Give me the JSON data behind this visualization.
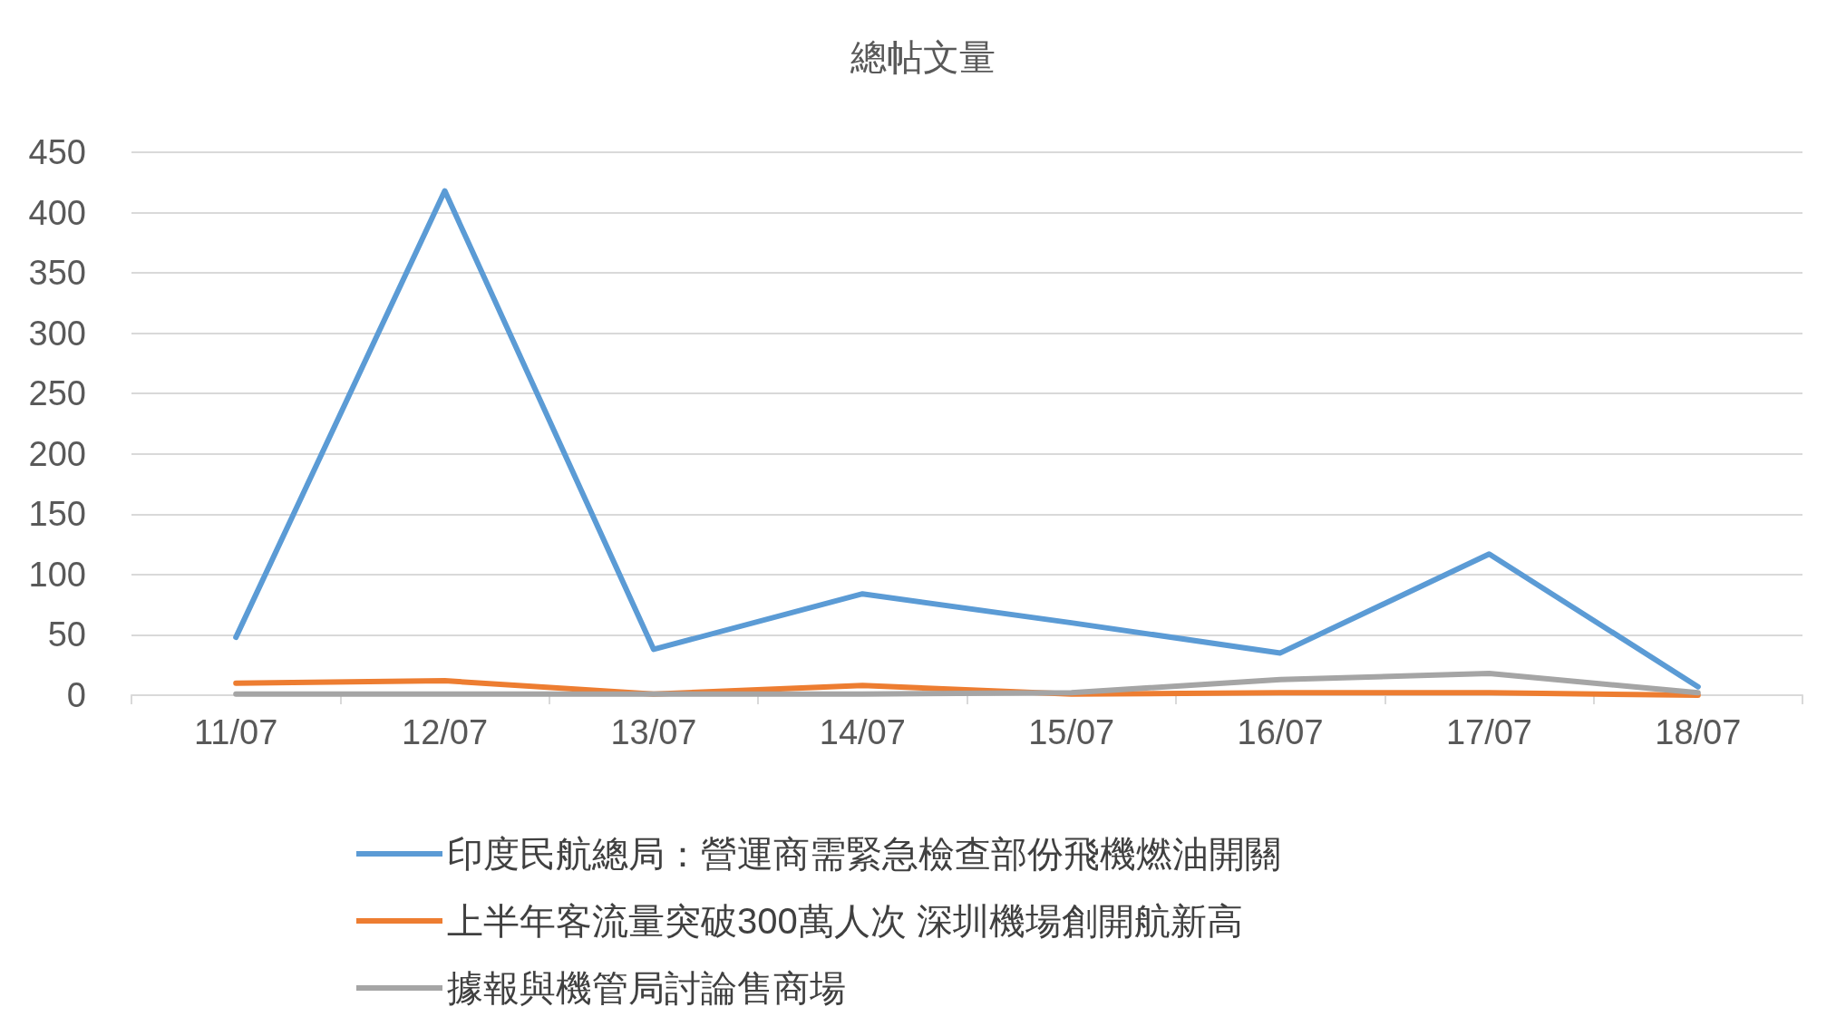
{
  "chart_data": {
    "type": "line",
    "title": "總帖文量",
    "categories": [
      "11/07",
      "12/07",
      "13/07",
      "14/07",
      "15/07",
      "16/07",
      "17/07",
      "18/07"
    ],
    "series": [
      {
        "name": "印度民航總局：營運商需緊急檢查部份飛機燃油開關",
        "color": "#5b9bd5",
        "values": [
          48,
          418,
          38,
          84,
          60,
          35,
          117,
          7
        ]
      },
      {
        "name": "上半年客流量突破300萬人次 深圳機場創開航新高",
        "color": "#ed7d31",
        "values": [
          10,
          12,
          1,
          8,
          1,
          2,
          2,
          0
        ]
      },
      {
        "name": "據報與機管局討論售商場",
        "color": "#a5a5a5",
        "values": [
          1,
          1,
          1,
          1,
          2,
          13,
          18,
          2
        ]
      }
    ],
    "ylim": [
      0,
      450
    ],
    "yticks": [
      0,
      50,
      100,
      150,
      200,
      250,
      300,
      350,
      400,
      450
    ],
    "grid": "y",
    "legend": "bottom",
    "marker": "none",
    "line_style": "solid"
  }
}
